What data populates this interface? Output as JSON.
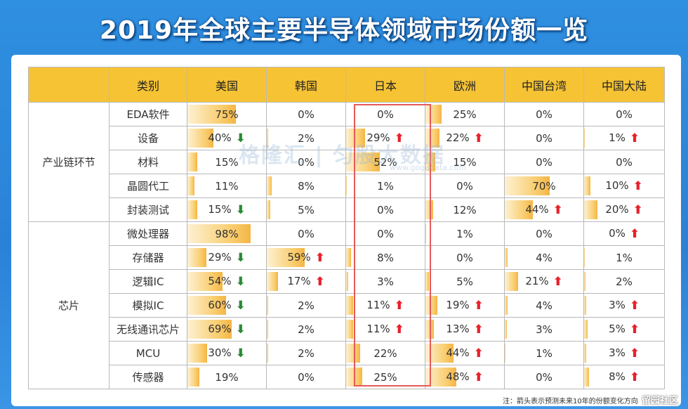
{
  "title": "2019年全球主要半导体领域市场份额一览",
  "chart_data": {
    "type": "table",
    "columns": [
      "类别",
      "美国",
      "韩国",
      "日本",
      "欧洲",
      "中国台湾",
      "中国大陆"
    ],
    "groups": [
      {
        "name": "产业链环节",
        "rows": [
          {
            "label": "EDA软件",
            "cells": [
              {
                "v": "75%",
                "n": 75,
                "a": ""
              },
              {
                "v": "0%",
                "n": 0,
                "a": ""
              },
              {
                "v": "0%",
                "n": 0,
                "a": ""
              },
              {
                "v": "25%",
                "n": 25,
                "a": ""
              },
              {
                "v": "0%",
                "n": 0,
                "a": ""
              },
              {
                "v": "0%",
                "n": 0,
                "a": ""
              }
            ]
          },
          {
            "label": "设备",
            "cells": [
              {
                "v": "40%",
                "n": 40,
                "a": "down"
              },
              {
                "v": "2%",
                "n": 2,
                "a": ""
              },
              {
                "v": "29%",
                "n": 29,
                "a": "up"
              },
              {
                "v": "22%",
                "n": 22,
                "a": "up"
              },
              {
                "v": "0%",
                "n": 0,
                "a": ""
              },
              {
                "v": "1%",
                "n": 1,
                "a": "up"
              }
            ]
          },
          {
            "label": "材料",
            "cells": [
              {
                "v": "15%",
                "n": 15,
                "a": ""
              },
              {
                "v": "0%",
                "n": 0,
                "a": ""
              },
              {
                "v": "52%",
                "n": 52,
                "a": ""
              },
              {
                "v": "15%",
                "n": 15,
                "a": ""
              },
              {
                "v": "0%",
                "n": 0,
                "a": ""
              },
              {
                "v": "0%",
                "n": 0,
                "a": ""
              }
            ]
          },
          {
            "label": "晶圆代工",
            "cells": [
              {
                "v": "11%",
                "n": 11,
                "a": ""
              },
              {
                "v": "8%",
                "n": 8,
                "a": ""
              },
              {
                "v": "1%",
                "n": 1,
                "a": ""
              },
              {
                "v": "0%",
                "n": 0,
                "a": ""
              },
              {
                "v": "70%",
                "n": 70,
                "a": ""
              },
              {
                "v": "10%",
                "n": 10,
                "a": "up"
              }
            ]
          },
          {
            "label": "封装测试",
            "cells": [
              {
                "v": "15%",
                "n": 15,
                "a": "down"
              },
              {
                "v": "5%",
                "n": 5,
                "a": ""
              },
              {
                "v": "0%",
                "n": 0,
                "a": ""
              },
              {
                "v": "12%",
                "n": 12,
                "a": ""
              },
              {
                "v": "44%",
                "n": 44,
                "a": "up"
              },
              {
                "v": "20%",
                "n": 20,
                "a": "up"
              }
            ]
          }
        ]
      },
      {
        "name": "芯片",
        "rows": [
          {
            "label": "微处理器",
            "cells": [
              {
                "v": "98%",
                "n": 98,
                "a": ""
              },
              {
                "v": "0%",
                "n": 0,
                "a": ""
              },
              {
                "v": "0%",
                "n": 0,
                "a": ""
              },
              {
                "v": "1%",
                "n": 1,
                "a": ""
              },
              {
                "v": "0%",
                "n": 0,
                "a": ""
              },
              {
                "v": "0%",
                "n": 0,
                "a": "up"
              }
            ]
          },
          {
            "label": "存储器",
            "cells": [
              {
                "v": "29%",
                "n": 29,
                "a": "down"
              },
              {
                "v": "59%",
                "n": 59,
                "a": "up"
              },
              {
                "v": "8%",
                "n": 8,
                "a": ""
              },
              {
                "v": "0%",
                "n": 0,
                "a": ""
              },
              {
                "v": "4%",
                "n": 4,
                "a": ""
              },
              {
                "v": "1%",
                "n": 1,
                "a": ""
              }
            ]
          },
          {
            "label": "逻辑IC",
            "cells": [
              {
                "v": "54%",
                "n": 54,
                "a": "down"
              },
              {
                "v": "17%",
                "n": 17,
                "a": "up"
              },
              {
                "v": "3%",
                "n": 3,
                "a": ""
              },
              {
                "v": "5%",
                "n": 5,
                "a": ""
              },
              {
                "v": "21%",
                "n": 21,
                "a": "up"
              },
              {
                "v": "2%",
                "n": 2,
                "a": ""
              }
            ]
          },
          {
            "label": "模拟IC",
            "cells": [
              {
                "v": "60%",
                "n": 60,
                "a": "down"
              },
              {
                "v": "2%",
                "n": 2,
                "a": ""
              },
              {
                "v": "11%",
                "n": 11,
                "a": "up"
              },
              {
                "v": "19%",
                "n": 19,
                "a": "up"
              },
              {
                "v": "4%",
                "n": 4,
                "a": ""
              },
              {
                "v": "3%",
                "n": 3,
                "a": "up"
              }
            ]
          },
          {
            "label": "无线通讯芯片",
            "cells": [
              {
                "v": "69%",
                "n": 69,
                "a": "down"
              },
              {
                "v": "2%",
                "n": 2,
                "a": ""
              },
              {
                "v": "11%",
                "n": 11,
                "a": "up"
              },
              {
                "v": "13%",
                "n": 13,
                "a": "up"
              },
              {
                "v": "3%",
                "n": 3,
                "a": ""
              },
              {
                "v": "5%",
                "n": 5,
                "a": "up"
              }
            ]
          },
          {
            "label": "MCU",
            "cells": [
              {
                "v": "30%",
                "n": 30,
                "a": "down"
              },
              {
                "v": "2%",
                "n": 2,
                "a": ""
              },
              {
                "v": "22%",
                "n": 22,
                "a": ""
              },
              {
                "v": "44%",
                "n": 44,
                "a": "up"
              },
              {
                "v": "1%",
                "n": 1,
                "a": ""
              },
              {
                "v": "3%",
                "n": 3,
                "a": "up"
              }
            ]
          },
          {
            "label": "传感器",
            "cells": [
              {
                "v": "19%",
                "n": 19,
                "a": ""
              },
              {
                "v": "0%",
                "n": 0,
                "a": ""
              },
              {
                "v": "25%",
                "n": 25,
                "a": ""
              },
              {
                "v": "48%",
                "n": 48,
                "a": "up"
              },
              {
                "v": "0%",
                "n": 0,
                "a": ""
              },
              {
                "v": "8%",
                "n": 8,
                "a": "up"
              }
            ]
          }
        ]
      }
    ]
  },
  "watermark": "格隆汇 | 匀股大数据",
  "watermark_sub": "www.gogudata.com",
  "note": "注：箭头表示预测未来10年的份额变化方向",
  "corner_logo": "留园社区",
  "colors": {
    "header": "#f6c334",
    "bar": "#f4b545",
    "up": "#e8202a",
    "down": "#2a8a35",
    "highlight": "#e55a5a"
  }
}
